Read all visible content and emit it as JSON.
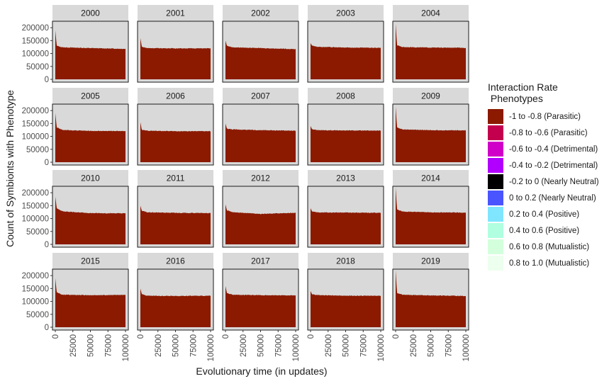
{
  "chart_data": {
    "type": "area",
    "facet_titles": [
      "2000",
      "2001",
      "2002",
      "2003",
      "2004",
      "2005",
      "2006",
      "2007",
      "2008",
      "2009",
      "2010",
      "2011",
      "2012",
      "2013",
      "2014",
      "2015",
      "2016",
      "2017",
      "2018",
      "2019"
    ],
    "xlabel": "Evolutionary time (in updates)",
    "ylabel": "Count of Symbionts with Phenotype",
    "xlim": [
      0,
      100000
    ],
    "ylim": [
      0,
      225000
    ],
    "x_ticks": [
      "0",
      "25000",
      "50000",
      "75000",
      "100000"
    ],
    "y_ticks": [
      "0",
      "50000",
      "100000",
      "150000",
      "200000"
    ],
    "grid": false,
    "legend_position": "right",
    "fill_color": "#8B1A00",
    "panel_background": "#d9d9d9",
    "series": [
      {
        "name": "2000",
        "values": [
          [
            0,
            190000
          ],
          [
            2000,
            130000
          ],
          [
            10000,
            124000
          ],
          [
            50000,
            121000
          ],
          [
            100000,
            118000
          ]
        ]
      },
      {
        "name": "2001",
        "values": [
          [
            0,
            160000
          ],
          [
            2000,
            126000
          ],
          [
            10000,
            121000
          ],
          [
            50000,
            120000
          ],
          [
            100000,
            120000
          ]
        ]
      },
      {
        "name": "2002",
        "values": [
          [
            0,
            150000
          ],
          [
            2000,
            130000
          ],
          [
            10000,
            124000
          ],
          [
            50000,
            121000
          ],
          [
            100000,
            117000
          ]
        ]
      },
      {
        "name": "2003",
        "values": [
          [
            0,
            140000
          ],
          [
            2000,
            131000
          ],
          [
            10000,
            126000
          ],
          [
            50000,
            123000
          ],
          [
            100000,
            122000
          ]
        ]
      },
      {
        "name": "2004",
        "values": [
          [
            0,
            215000
          ],
          [
            2000,
            132000
          ],
          [
            10000,
            125000
          ],
          [
            50000,
            123000
          ],
          [
            100000,
            122000
          ]
        ]
      },
      {
        "name": "2005",
        "values": [
          [
            0,
            190000
          ],
          [
            2000,
            135000
          ],
          [
            10000,
            125000
          ],
          [
            50000,
            121000
          ],
          [
            100000,
            121000
          ]
        ]
      },
      {
        "name": "2006",
        "values": [
          [
            0,
            155000
          ],
          [
            2000,
            125000
          ],
          [
            10000,
            122000
          ],
          [
            50000,
            120000
          ],
          [
            100000,
            120000
          ]
        ]
      },
      {
        "name": "2007",
        "values": [
          [
            0,
            150000
          ],
          [
            2000,
            130000
          ],
          [
            10000,
            127000
          ],
          [
            50000,
            124000
          ],
          [
            100000,
            122000
          ]
        ]
      },
      {
        "name": "2008",
        "values": [
          [
            0,
            140000
          ],
          [
            2000,
            128000
          ],
          [
            10000,
            124000
          ],
          [
            50000,
            123000
          ],
          [
            100000,
            122000
          ]
        ]
      },
      {
        "name": "2009",
        "values": [
          [
            0,
            215000
          ],
          [
            2000,
            135000
          ],
          [
            10000,
            127000
          ],
          [
            50000,
            124000
          ],
          [
            100000,
            123000
          ]
        ]
      },
      {
        "name": "2010",
        "values": [
          [
            0,
            185000
          ],
          [
            2000,
            140000
          ],
          [
            10000,
            128000
          ],
          [
            50000,
            121000
          ],
          [
            100000,
            120000
          ]
        ]
      },
      {
        "name": "2011",
        "values": [
          [
            0,
            150000
          ],
          [
            2000,
            130000
          ],
          [
            10000,
            124000
          ],
          [
            50000,
            122000
          ],
          [
            100000,
            121000
          ]
        ]
      },
      {
        "name": "2012",
        "values": [
          [
            0,
            155000
          ],
          [
            2000,
            132000
          ],
          [
            10000,
            125000
          ],
          [
            50000,
            118000
          ],
          [
            100000,
            122000
          ]
        ]
      },
      {
        "name": "2013",
        "values": [
          [
            0,
            140000
          ],
          [
            2000,
            128000
          ],
          [
            10000,
            124000
          ],
          [
            50000,
            123000
          ],
          [
            100000,
            122000
          ]
        ]
      },
      {
        "name": "2014",
        "values": [
          [
            0,
            220000
          ],
          [
            2000,
            135000
          ],
          [
            10000,
            127000
          ],
          [
            50000,
            124000
          ],
          [
            100000,
            123000
          ]
        ]
      },
      {
        "name": "2015",
        "values": [
          [
            0,
            190000
          ],
          [
            2000,
            135000
          ],
          [
            10000,
            126000
          ],
          [
            50000,
            124000
          ],
          [
            100000,
            125000
          ]
        ]
      },
      {
        "name": "2016",
        "values": [
          [
            0,
            150000
          ],
          [
            2000,
            128000
          ],
          [
            10000,
            122000
          ],
          [
            50000,
            121000
          ],
          [
            100000,
            122000
          ]
        ]
      },
      {
        "name": "2017",
        "values": [
          [
            0,
            160000
          ],
          [
            2000,
            132000
          ],
          [
            10000,
            126000
          ],
          [
            50000,
            124000
          ],
          [
            100000,
            123000
          ]
        ]
      },
      {
        "name": "2018",
        "values": [
          [
            0,
            140000
          ],
          [
            2000,
            128000
          ],
          [
            10000,
            124000
          ],
          [
            50000,
            122000
          ],
          [
            100000,
            122000
          ]
        ]
      },
      {
        "name": "2019",
        "values": [
          [
            0,
            220000
          ],
          [
            2000,
            133000
          ],
          [
            10000,
            126000
          ],
          [
            50000,
            123000
          ],
          [
            100000,
            121000
          ]
        ]
      }
    ]
  },
  "legend": {
    "title": "Interaction Rate\n Phenotypes",
    "items": [
      {
        "label": "-1 to -0.8 (Parasitic)",
        "color": "#8B1A00"
      },
      {
        "label": "-0.8 to -0.6 (Parasitic)",
        "color": "#C2004D"
      },
      {
        "label": "-0.6 to -0.4 (Detrimental)",
        "color": "#D000C8"
      },
      {
        "label": "-0.4 to -0.2 (Detrimental)",
        "color": "#B200FF"
      },
      {
        "label": "-0.2 to 0 (Nearly Neutral)",
        "color": "#000000"
      },
      {
        "label": "0 to 0.2 (Nearly Neutral)",
        "color": "#4A55FF"
      },
      {
        "label": "0.2 to 0.4 (Positive)",
        "color": "#80E5FF"
      },
      {
        "label": "0.4 to 0.6 (Positive)",
        "color": "#B0FFE0"
      },
      {
        "label": "0.6 to 0.8 (Mutualistic)",
        "color": "#D4FFDD"
      },
      {
        "label": "0.8 to 1.0 (Mutualistic)",
        "color": "#EDFFEE"
      }
    ]
  }
}
